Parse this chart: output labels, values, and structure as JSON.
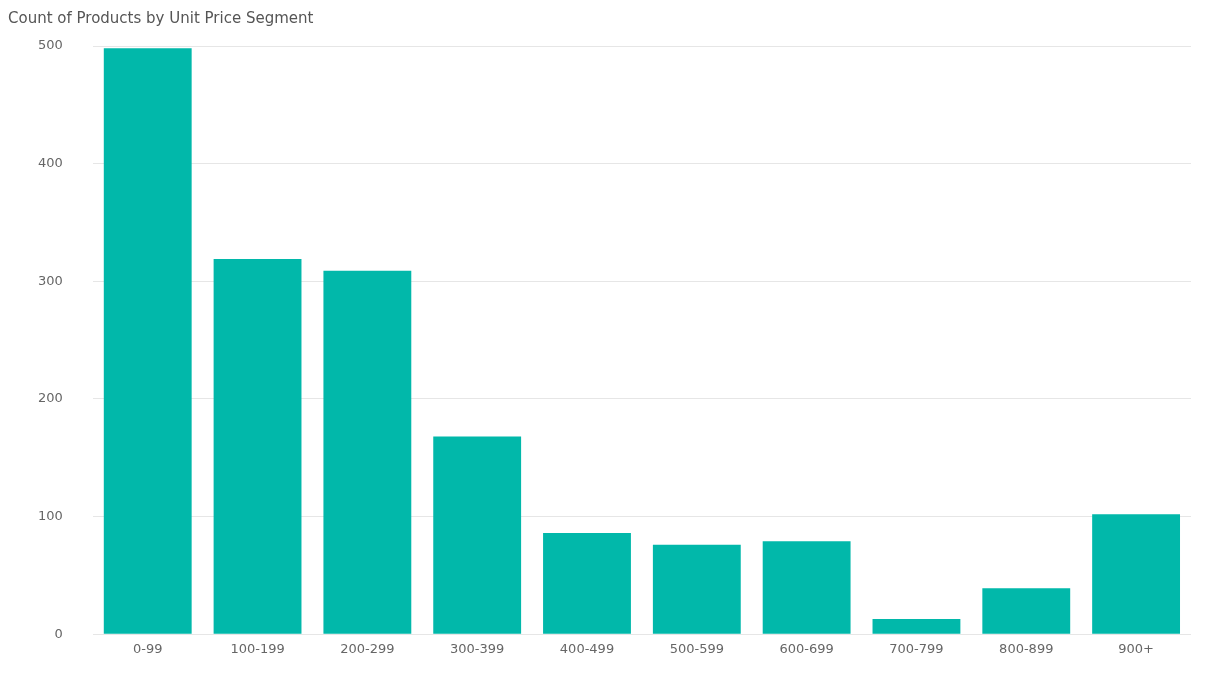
{
  "chart_data": {
    "type": "bar",
    "title": "Count of Products by Unit Price Segment",
    "categories": [
      "0-99",
      "100-199",
      "200-299",
      "300-399",
      "400-499",
      "500-599",
      "600-699",
      "700-799",
      "800-899",
      "900+"
    ],
    "values": [
      498,
      319,
      309,
      168,
      86,
      76,
      79,
      13,
      39,
      102
    ],
    "color": "#01b8aa",
    "ylim": [
      0,
      500
    ],
    "yticks": [
      0,
      100,
      200,
      300,
      400,
      500
    ],
    "grid": "y",
    "legend": false
  }
}
